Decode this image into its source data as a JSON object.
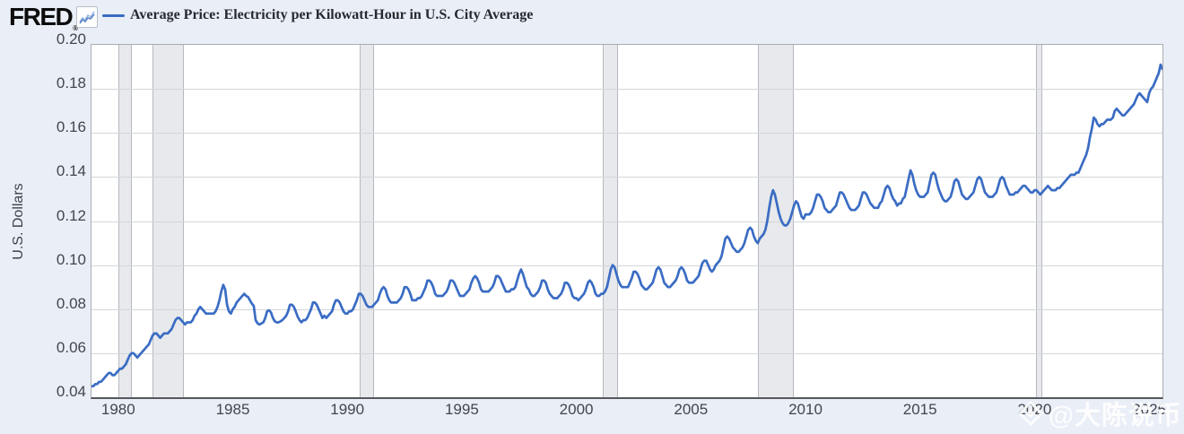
{
  "header": {
    "logo_text": "FRED",
    "logo_reg": "®",
    "series_label": "Average Price: Electricity per Kilowatt-Hour in U.S. City Average"
  },
  "watermark": {
    "icon": "diamond-icon",
    "text": "@大陈说币"
  },
  "chart_data": {
    "type": "line",
    "title": "Average Price: Electricity per Kilowatt-Hour in U.S. City Average",
    "xlabel": "",
    "ylabel": "U.S. Dollars",
    "grid": "horizontal-only",
    "legend_position": "top",
    "line_color": "#3a6cc3",
    "ylim": [
      0.04,
      0.2
    ],
    "y_ticks": [
      0.04,
      0.06,
      0.08,
      0.1,
      0.12,
      0.14,
      0.16,
      0.18,
      0.2
    ],
    "x_ticks": [
      1980,
      1985,
      1990,
      1995,
      2000,
      2005,
      2010,
      2015,
      2020,
      2025
    ],
    "start_year": 1978,
    "start_month": 11,
    "frequency": "monthly",
    "recession_bands": [
      {
        "start": 1980.0,
        "end": 1980.5
      },
      {
        "start": 1981.5,
        "end": 1982.8
      },
      {
        "start": 1990.55,
        "end": 1991.1
      },
      {
        "start": 2001.15,
        "end": 2001.75
      },
      {
        "start": 2007.92,
        "end": 2009.4
      },
      {
        "start": 2020.08,
        "end": 2020.25
      }
    ],
    "series": [
      {
        "name": "Average Price: Electricity per Kilowatt-Hour in U.S. City Average",
        "units": "U.S. Dollars",
        "values": [
          0.045,
          0.045,
          0.046,
          0.046,
          0.047,
          0.047,
          0.048,
          0.049,
          0.05,
          0.051,
          0.051,
          0.05,
          0.05,
          0.051,
          0.052,
          0.053,
          0.053,
          0.054,
          0.055,
          0.057,
          0.059,
          0.06,
          0.06,
          0.059,
          0.058,
          0.059,
          0.06,
          0.061,
          0.062,
          0.063,
          0.064,
          0.066,
          0.068,
          0.069,
          0.069,
          0.068,
          0.067,
          0.068,
          0.069,
          0.069,
          0.069,
          0.07,
          0.071,
          0.073,
          0.075,
          0.076,
          0.076,
          0.075,
          0.074,
          0.073,
          0.074,
          0.074,
          0.074,
          0.075,
          0.077,
          0.078,
          0.08,
          0.081,
          0.08,
          0.079,
          0.078,
          0.078,
          0.078,
          0.078,
          0.078,
          0.079,
          0.081,
          0.084,
          0.088,
          0.091,
          0.089,
          0.082,
          0.079,
          0.078,
          0.08,
          0.081,
          0.083,
          0.084,
          0.085,
          0.086,
          0.087,
          0.086,
          0.0855,
          0.084,
          0.0825,
          0.0815,
          0.075,
          0.0735,
          0.073,
          0.0735,
          0.074,
          0.076,
          0.079,
          0.0795,
          0.0785,
          0.076,
          0.0745,
          0.074,
          0.074,
          0.0745,
          0.075,
          0.076,
          0.077,
          0.079,
          0.082,
          0.082,
          0.081,
          0.079,
          0.0765,
          0.075,
          0.074,
          0.075,
          0.075,
          0.076,
          0.078,
          0.08,
          0.083,
          0.083,
          0.082,
          0.08,
          0.078,
          0.076,
          0.077,
          0.076,
          0.077,
          0.078,
          0.079,
          0.082,
          0.084,
          0.084,
          0.083,
          0.081,
          0.079,
          0.078,
          0.078,
          0.079,
          0.079,
          0.08,
          0.082,
          0.084,
          0.087,
          0.087,
          0.086,
          0.084,
          0.082,
          0.081,
          0.081,
          0.081,
          0.082,
          0.083,
          0.084,
          0.087,
          0.089,
          0.09,
          0.089,
          0.086,
          0.084,
          0.083,
          0.083,
          0.083,
          0.083,
          0.084,
          0.085,
          0.087,
          0.09,
          0.09,
          0.089,
          0.087,
          0.084,
          0.084,
          0.084,
          0.085,
          0.085,
          0.086,
          0.088,
          0.09,
          0.093,
          0.093,
          0.092,
          0.09,
          0.087,
          0.086,
          0.086,
          0.086,
          0.086,
          0.087,
          0.088,
          0.09,
          0.093,
          0.093,
          0.092,
          0.09,
          0.088,
          0.086,
          0.086,
          0.086,
          0.087,
          0.088,
          0.089,
          0.092,
          0.094,
          0.095,
          0.094,
          0.092,
          0.089,
          0.088,
          0.088,
          0.088,
          0.088,
          0.089,
          0.09,
          0.092,
          0.095,
          0.095,
          0.094,
          0.092,
          0.09,
          0.088,
          0.088,
          0.088,
          0.089,
          0.089,
          0.09,
          0.093,
          0.096,
          0.098,
          0.096,
          0.093,
          0.09,
          0.089,
          0.087,
          0.086,
          0.086,
          0.087,
          0.088,
          0.09,
          0.093,
          0.093,
          0.092,
          0.089,
          0.087,
          0.086,
          0.085,
          0.085,
          0.085,
          0.086,
          0.087,
          0.089,
          0.092,
          0.092,
          0.091,
          0.089,
          0.086,
          0.085,
          0.085,
          0.084,
          0.085,
          0.086,
          0.087,
          0.089,
          0.092,
          0.093,
          0.092,
          0.09,
          0.087,
          0.086,
          0.086,
          0.087,
          0.087,
          0.088,
          0.09,
          0.094,
          0.098,
          0.1,
          0.099,
          0.096,
          0.093,
          0.091,
          0.09,
          0.09,
          0.09,
          0.09,
          0.092,
          0.094,
          0.097,
          0.097,
          0.096,
          0.094,
          0.091,
          0.09,
          0.089,
          0.089,
          0.09,
          0.091,
          0.092,
          0.095,
          0.098,
          0.099,
          0.098,
          0.095,
          0.092,
          0.091,
          0.09,
          0.09,
          0.091,
          0.092,
          0.093,
          0.095,
          0.098,
          0.099,
          0.098,
          0.096,
          0.093,
          0.092,
          0.092,
          0.092,
          0.093,
          0.094,
          0.095,
          0.098,
          0.101,
          0.102,
          0.102,
          0.1,
          0.098,
          0.097,
          0.098,
          0.1,
          0.101,
          0.102,
          0.104,
          0.108,
          0.112,
          0.113,
          0.112,
          0.11,
          0.108,
          0.107,
          0.106,
          0.106,
          0.107,
          0.108,
          0.11,
          0.113,
          0.116,
          0.117,
          0.116,
          0.113,
          0.111,
          0.11,
          0.112,
          0.113,
          0.114,
          0.116,
          0.12,
          0.126,
          0.131,
          0.134,
          0.132,
          0.128,
          0.124,
          0.121,
          0.119,
          0.118,
          0.118,
          0.119,
          0.121,
          0.124,
          0.127,
          0.129,
          0.128,
          0.125,
          0.122,
          0.121,
          0.123,
          0.123,
          0.123,
          0.124,
          0.126,
          0.129,
          0.132,
          0.132,
          0.131,
          0.129,
          0.126,
          0.125,
          0.124,
          0.124,
          0.125,
          0.126,
          0.127,
          0.13,
          0.133,
          0.133,
          0.132,
          0.13,
          0.128,
          0.126,
          0.125,
          0.125,
          0.125,
          0.126,
          0.127,
          0.13,
          0.133,
          0.133,
          0.132,
          0.13,
          0.128,
          0.127,
          0.126,
          0.126,
          0.126,
          0.128,
          0.129,
          0.132,
          0.135,
          0.136,
          0.135,
          0.132,
          0.13,
          0.129,
          0.127,
          0.128,
          0.128,
          0.13,
          0.131,
          0.135,
          0.139,
          0.143,
          0.141,
          0.137,
          0.134,
          0.132,
          0.131,
          0.131,
          0.131,
          0.132,
          0.133,
          0.137,
          0.141,
          0.142,
          0.141,
          0.137,
          0.134,
          0.132,
          0.13,
          0.129,
          0.129,
          0.13,
          0.131,
          0.134,
          0.138,
          0.139,
          0.138,
          0.135,
          0.132,
          0.131,
          0.13,
          0.13,
          0.131,
          0.132,
          0.133,
          0.136,
          0.139,
          0.14,
          0.139,
          0.136,
          0.133,
          0.132,
          0.131,
          0.131,
          0.131,
          0.132,
          0.133,
          0.136,
          0.139,
          0.14,
          0.139,
          0.136,
          0.134,
          0.132,
          0.132,
          0.132,
          0.133,
          0.133,
          0.134,
          0.135,
          0.136,
          0.136,
          0.135,
          0.134,
          0.133,
          0.133,
          0.134,
          0.134,
          0.133,
          0.132,
          0.133,
          0.134,
          0.135,
          0.136,
          0.135,
          0.134,
          0.134,
          0.134,
          0.135,
          0.135,
          0.136,
          0.137,
          0.138,
          0.139,
          0.14,
          0.141,
          0.141,
          0.141,
          0.142,
          0.142,
          0.144,
          0.146,
          0.148,
          0.15,
          0.153,
          0.158,
          0.162,
          0.167,
          0.166,
          0.164,
          0.163,
          0.164,
          0.164,
          0.165,
          0.166,
          0.166,
          0.166,
          0.167,
          0.17,
          0.171,
          0.17,
          0.169,
          0.168,
          0.168,
          0.169,
          0.17,
          0.171,
          0.172,
          0.173,
          0.175,
          0.177,
          0.178,
          0.177,
          0.176,
          0.175,
          0.174,
          0.178,
          0.18,
          0.181,
          0.183,
          0.185,
          0.187,
          0.191,
          0.189
        ]
      }
    ]
  }
}
